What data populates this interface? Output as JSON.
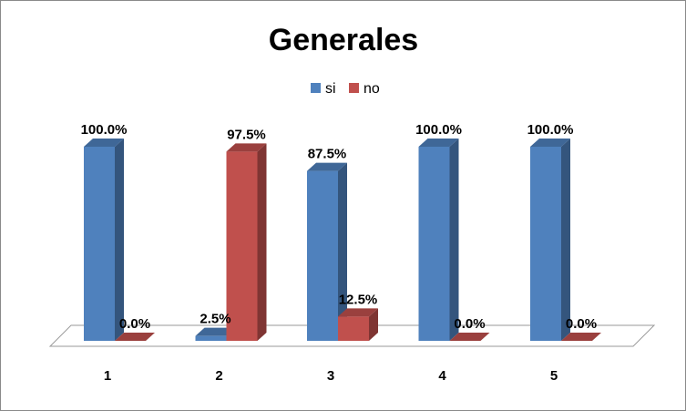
{
  "chart_data": {
    "type": "bar",
    "title": "Generales",
    "xlabel": "",
    "ylabel": "",
    "categories": [
      "1",
      "2",
      "3",
      "4",
      "5"
    ],
    "series": [
      {
        "name": "si",
        "color": "#4F81BD",
        "values": [
          100.0,
          2.5,
          87.5,
          100.0,
          100.0
        ],
        "labels": [
          "100.0%",
          "2.5%",
          "87.5%",
          "100.0%",
          "100.0%"
        ]
      },
      {
        "name": "no",
        "color": "#C0504D",
        "values": [
          0.0,
          97.5,
          12.5,
          0.0,
          0.0
        ],
        "labels": [
          "0.0%",
          "97.5%",
          "12.5%",
          "0.0%",
          "0.0%"
        ]
      }
    ],
    "ylim": [
      0,
      100
    ],
    "value_format": "percent, one decimal",
    "grid": false,
    "legend": "top-center",
    "style": "3d-clustered-column"
  }
}
